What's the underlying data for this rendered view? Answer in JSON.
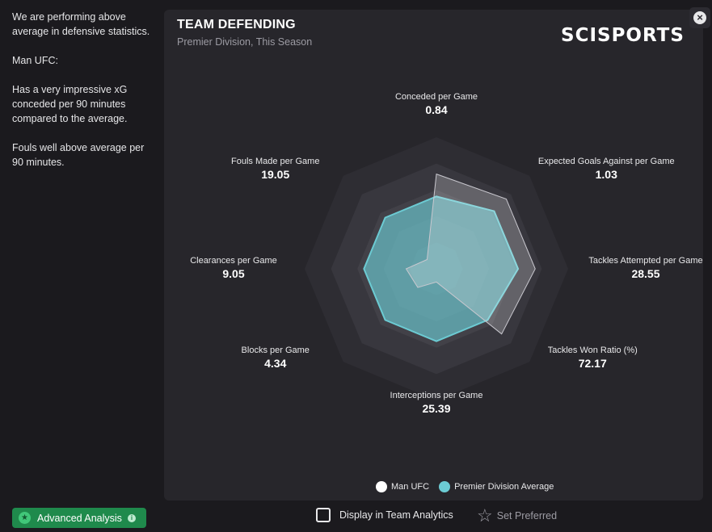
{
  "sidebar": {
    "paragraphs": [
      "We are performing above average in defensive statistics.",
      "Man UFC:",
      "Has a very impressive xG conceded per 90 minutes compared to the average.",
      "Fouls well above average per 90 minutes."
    ]
  },
  "card": {
    "title": "TEAM DEFENDING",
    "subtitle": "Premier Division, This Season",
    "brand": "SCISPORTS"
  },
  "axes": [
    {
      "name": "Conceded per Game",
      "value": "0.84"
    },
    {
      "name": "Expected Goals Against per Game",
      "value": "1.03"
    },
    {
      "name": "Tackles Attempted per Game",
      "value": "28.55"
    },
    {
      "name": "Tackles Won Ratio (%)",
      "value": "72.17"
    },
    {
      "name": "Interceptions per Game",
      "value": "25.39"
    },
    {
      "name": "Blocks per Game",
      "value": "4.34"
    },
    {
      "name": "Clearances per Game",
      "value": "9.05"
    },
    {
      "name": "Fouls Made per Game",
      "value": "19.05"
    }
  ],
  "chart_data": {
    "type": "radar",
    "categories": [
      "Conceded per Game",
      "Expected Goals Against per Game",
      "Tackles Attempted per Game",
      "Tackles Won Ratio (%)",
      "Interceptions per Game",
      "Blocks per Game",
      "Clearances per Game",
      "Fouls Made per Game"
    ],
    "series": [
      {
        "name": "Man UFC",
        "color": "#ffffff",
        "values": [
          0.84,
          1.03,
          28.55,
          72.17,
          25.39,
          4.34,
          9.05,
          19.05
        ],
        "normalized": [
          0.72,
          0.75,
          0.75,
          0.7,
          0.1,
          0.2,
          0.23,
          0.1
        ]
      },
      {
        "name": "Premier Division Average",
        "color": "#6ccbd3",
        "normalized": [
          0.55,
          0.62,
          0.62,
          0.55,
          0.55,
          0.55,
          0.55,
          0.55
        ]
      }
    ]
  },
  "legend": {
    "team": "Man UFC",
    "average": "Premier Division Average"
  },
  "footer": {
    "advanced": "Advanced Analysis",
    "display": "Display in Team Analytics",
    "preferred": "Set Preferred"
  },
  "colors": {
    "card_bg": "#27262b",
    "team": "#ffffff",
    "average": "#6ccbd3",
    "accent_green": "#1f8a4c"
  }
}
